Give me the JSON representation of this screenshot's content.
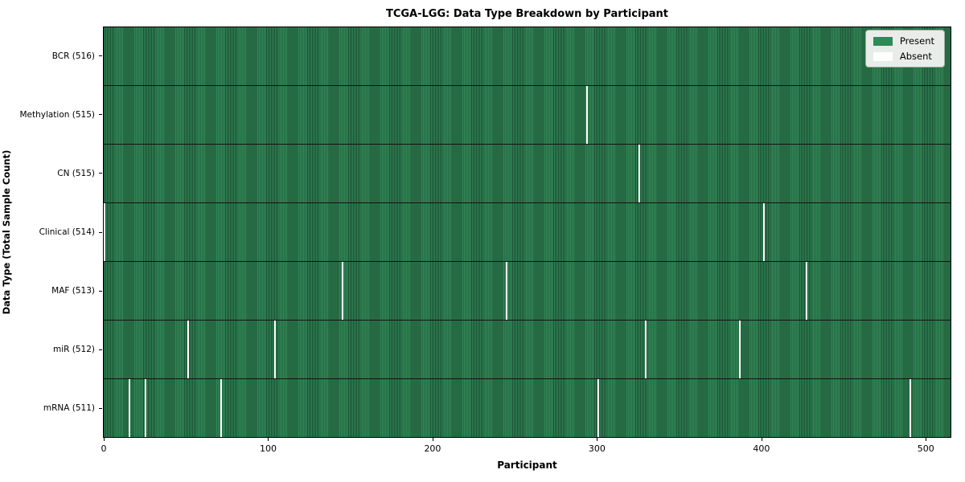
{
  "chart_data": {
    "type": "heatmap",
    "title": "TCGA-LGG: Data Type Breakdown by Participant",
    "xlabel": "Participant",
    "ylabel": "Data Type (Total Sample Count)",
    "x_ticks": [
      0,
      100,
      200,
      300,
      400,
      500
    ],
    "n_participants": 516,
    "x_range": [
      0,
      516
    ],
    "grid": false,
    "legend_position": "upper right",
    "rows": [
      {
        "label": "BCR (516)",
        "data_type": "BCR",
        "present_count": 516,
        "absent_count": 0,
        "absent_at": []
      },
      {
        "label": "Methylation (515)",
        "data_type": "Methylation",
        "present_count": 515,
        "absent_count": 1,
        "absent_at": [
          294
        ]
      },
      {
        "label": "CN (515)",
        "data_type": "CN",
        "present_count": 515,
        "absent_count": 1,
        "absent_at": [
          326
        ]
      },
      {
        "label": "Clinical (514)",
        "data_type": "Clinical",
        "present_count": 514,
        "absent_count": 2,
        "absent_at": [
          0,
          402
        ]
      },
      {
        "label": "MAF (513)",
        "data_type": "MAF",
        "present_count": 513,
        "absent_count": 3,
        "absent_at": [
          145,
          245,
          428
        ]
      },
      {
        "label": "miR (512)",
        "data_type": "miR",
        "present_count": 512,
        "absent_count": 4,
        "absent_at": [
          51,
          104,
          330,
          387
        ]
      },
      {
        "label": "mRNA (511)",
        "data_type": "mRNA",
        "present_count": 511,
        "absent_count": 5,
        "absent_at": [
          15,
          25,
          71,
          301,
          491
        ]
      }
    ],
    "legend": [
      {
        "label": "Present",
        "color": "#2e8b57"
      },
      {
        "label": "Absent",
        "color": "#ffffff"
      }
    ],
    "colors": {
      "present_fill": "#318757",
      "present_edge": "#1b4c31",
      "absent_fill": "#ffffff",
      "row_divider": "#131313",
      "plot_border": "#000000",
      "legend_bg": "#e9ede9"
    }
  }
}
